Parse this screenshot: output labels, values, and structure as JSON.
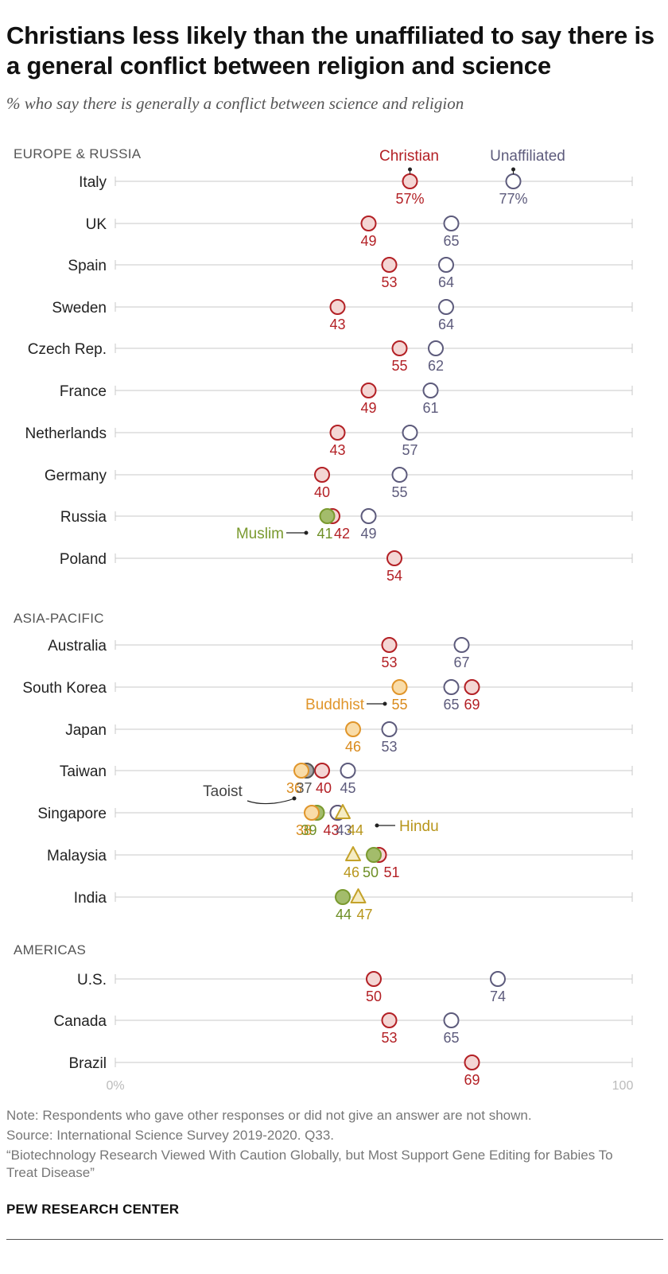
{
  "title": "Christians less likely than the unaffiliated to say there is a general conflict between religion and science",
  "subtitle": "% who say there is generally a conflict between science and religion",
  "chart_data": {
    "type": "scatter",
    "xlim": [
      0,
      100
    ],
    "x_axis_labels": [
      "0%",
      "100"
    ],
    "grid": true,
    "series": [
      {
        "name": "Christian",
        "color": "#b32025",
        "fill": "#f4d6d4",
        "marker": "circle"
      },
      {
        "name": "Unaffiliated",
        "color": "#5d5b7c",
        "fill": "#ffffff",
        "marker": "circle"
      },
      {
        "name": "Muslim",
        "color": "#7a9a2f",
        "fill": "#a3bc6b",
        "marker": "circle"
      },
      {
        "name": "Buddhist",
        "color": "#e0952a",
        "fill": "#f9dca8",
        "marker": "circle"
      },
      {
        "name": "Taoist",
        "color": "#555555",
        "fill": "#a6a6a6",
        "marker": "circle"
      },
      {
        "name": "Hindu",
        "color": "#c4a22a",
        "fill": "#f5ecc4",
        "marker": "triangle"
      }
    ],
    "regions": [
      {
        "name": "EUROPE & RUSSIA",
        "countries": [
          {
            "country": "Italy",
            "values": {
              "Christian": 57,
              "Unaffiliated": 77
            },
            "labels": {
              "Christian": "57%",
              "Unaffiliated": "77%"
            }
          },
          {
            "country": "UK",
            "values": {
              "Christian": 49,
              "Unaffiliated": 65
            }
          },
          {
            "country": "Spain",
            "values": {
              "Christian": 53,
              "Unaffiliated": 64
            }
          },
          {
            "country": "Sweden",
            "values": {
              "Christian": 43,
              "Unaffiliated": 64
            }
          },
          {
            "country": "Czech Rep.",
            "values": {
              "Christian": 55,
              "Unaffiliated": 62
            }
          },
          {
            "country": "France",
            "values": {
              "Christian": 49,
              "Unaffiliated": 61
            }
          },
          {
            "country": "Netherlands",
            "values": {
              "Christian": 43,
              "Unaffiliated": 57
            }
          },
          {
            "country": "Germany",
            "values": {
              "Christian": 40,
              "Unaffiliated": 55
            }
          },
          {
            "country": "Russia",
            "values": {
              "Muslim": 41,
              "Christian": 42,
              "Unaffiliated": 49
            }
          },
          {
            "country": "Poland",
            "values": {
              "Christian": 54
            }
          }
        ]
      },
      {
        "name": "ASIA-PACIFIC",
        "countries": [
          {
            "country": "Australia",
            "values": {
              "Christian": 53,
              "Unaffiliated": 67
            }
          },
          {
            "country": "South Korea",
            "values": {
              "Buddhist": 55,
              "Unaffiliated": 65,
              "Christian": 69
            }
          },
          {
            "country": "Japan",
            "values": {
              "Buddhist": 46,
              "Unaffiliated": 53
            }
          },
          {
            "country": "Taiwan",
            "values": {
              "Buddhist": 36,
              "Taoist": 37,
              "Christian": 40,
              "Unaffiliated": 45
            }
          },
          {
            "country": "Singapore",
            "values": {
              "Buddhist": 38,
              "Muslim": 39,
              "Christian": 43,
              "Unaffiliated": 43,
              "Hindu": 44
            }
          },
          {
            "country": "Malaysia",
            "values": {
              "Hindu": 46,
              "Muslim": 50,
              "Christian": 51
            }
          },
          {
            "country": "India",
            "values": {
              "Muslim": 44,
              "Hindu": 47
            }
          }
        ]
      },
      {
        "name": "AMERICAS",
        "countries": [
          {
            "country": "U.S.",
            "values": {
              "Christian": 50,
              "Unaffiliated": 74
            }
          },
          {
            "country": "Canada",
            "values": {
              "Christian": 53,
              "Unaffiliated": 65
            }
          },
          {
            "country": "Brazil",
            "values": {
              "Christian": 69
            }
          }
        ]
      }
    ]
  },
  "notes": {
    "note": "Note: Respondents who gave other responses or did not give an answer are not shown.",
    "source": "Source: International Science Survey 2019-2020. Q33.",
    "report": "“Biotechnology Research Viewed With Caution Globally, but Most Support Gene Editing for Babies To Treat Disease”"
  },
  "brand": "PEW RESEARCH CENTER"
}
